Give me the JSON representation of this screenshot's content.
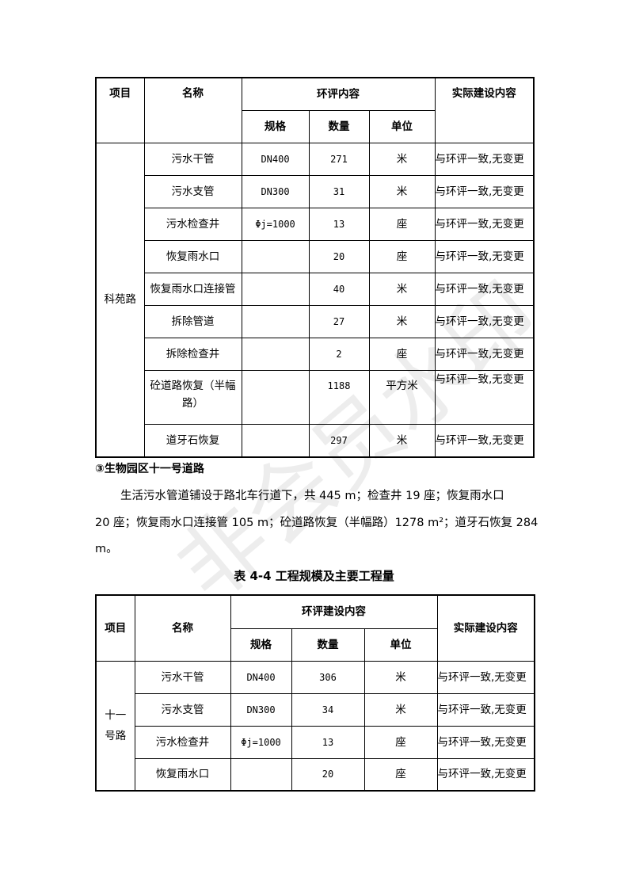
{
  "table1": {
    "headers": {
      "item": "项目",
      "name": "名称",
      "eia": "环评内容",
      "spec": "规格",
      "qty": "数量",
      "unit": "单位",
      "actual": "实际建设内容"
    },
    "group": "科苑路",
    "rows": [
      {
        "name": "污水干管",
        "spec": "DN400",
        "qty": "271",
        "unit": "米",
        "actual": "与环评一致,无变更"
      },
      {
        "name": "污水支管",
        "spec": "DN300",
        "qty": "31",
        "unit": "米",
        "actual": "与环评一致,无变更"
      },
      {
        "name": "污水检查井",
        "spec": "Φj=1000",
        "qty": "13",
        "unit": "座",
        "actual": "与环评一致,无变更"
      },
      {
        "name": "恢复雨水口",
        "spec": "",
        "qty": "20",
        "unit": "座",
        "actual": "与环评一致,无变更"
      },
      {
        "name": "恢复雨水口连接管",
        "spec": "",
        "qty": "40",
        "unit": "米",
        "actual": "与环评一致,无变更"
      },
      {
        "name": "拆除管道",
        "spec": "",
        "qty": "27",
        "unit": "米",
        "actual": "与环评一致,无变更"
      },
      {
        "name": "拆除检查井",
        "spec": "",
        "qty": "2",
        "unit": "座",
        "actual": "与环评一致,无变更"
      },
      {
        "name": "砼道路恢复（半幅路）",
        "spec": "",
        "qty": "1188",
        "unit": "平方米",
        "actual": "与环评一致,无变更"
      },
      {
        "name": "道牙石恢复",
        "spec": "",
        "qty": "297",
        "unit": "米",
        "actual": "与环评一致,无变更"
      }
    ]
  },
  "section_title": "③生物园区十一号道路",
  "paragraph": [
    "生活污水管道铺设于路北车行道下，共 445 m；检查井 19 座；恢复雨水口",
    "20 座；恢复雨水口连接管 105 m；砼道路恢复（半幅路）1278 m²；道牙石恢复 284",
    "m。"
  ],
  "caption": "表 4-4 工程规模及主要工程量",
  "table2": {
    "headers": {
      "item": "项目",
      "name": "名称",
      "eia": "环评建设内容",
      "spec": "规格",
      "qty": "数量",
      "unit": "单位",
      "actual": "实际建设内容"
    },
    "group": "十一号路",
    "rows": [
      {
        "name": "污水干管",
        "spec": "DN400",
        "qty": "306",
        "unit": "米",
        "actual": "与环评一致,无变更"
      },
      {
        "name": "污水支管",
        "spec": "DN300",
        "qty": "34",
        "unit": "米",
        "actual": "与环评一致,无变更"
      },
      {
        "name": "污水检查井",
        "spec": "Φj=1000",
        "qty": "13",
        "unit": "座",
        "actual": "与环评一致,无变更"
      },
      {
        "name": "恢复雨水口",
        "spec": "",
        "qty": "20",
        "unit": "座",
        "actual": "与环评一致,无变更"
      }
    ]
  },
  "watermark": "非会员水印"
}
